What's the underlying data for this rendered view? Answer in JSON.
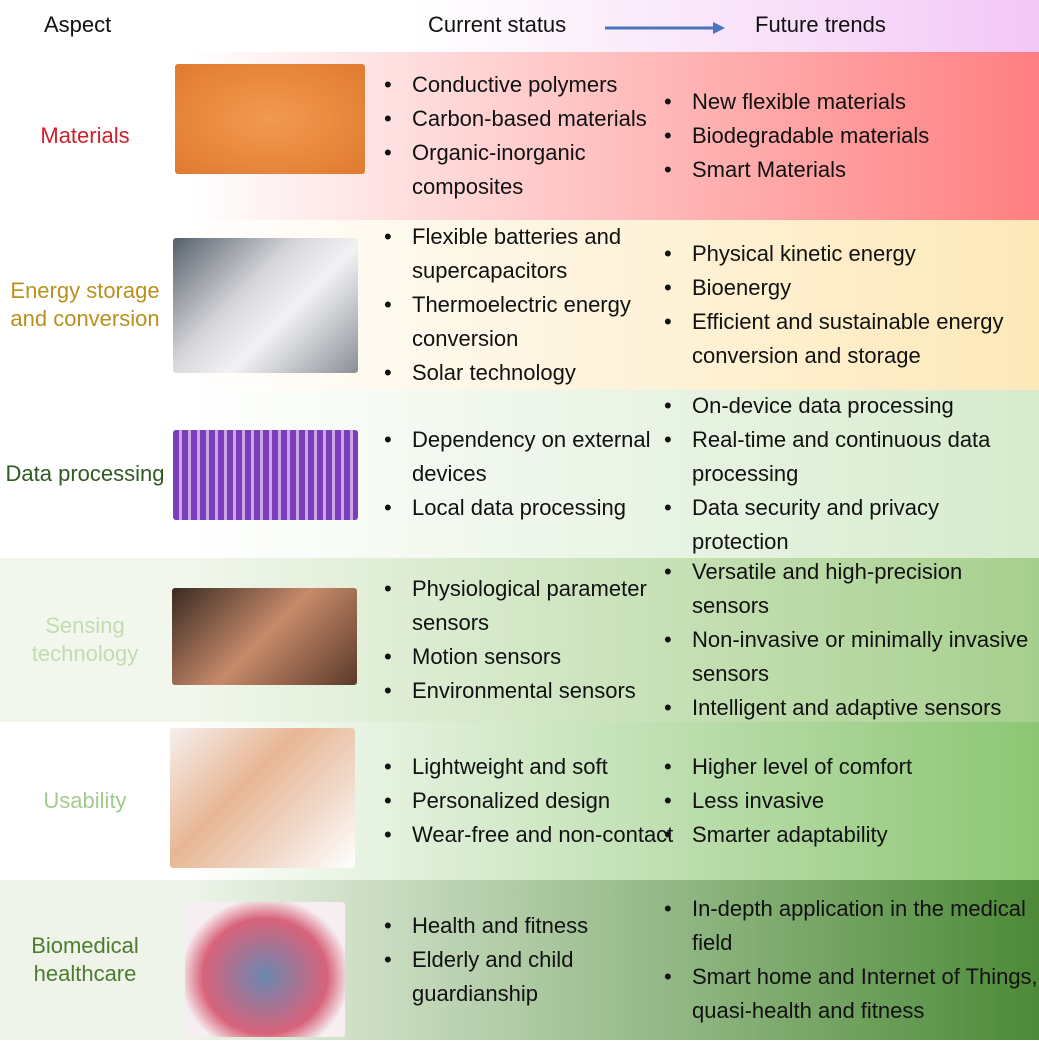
{
  "header": {
    "aspect": "Aspect",
    "current": "Current status",
    "future": "Future trends",
    "arrow_color": "#4a74c0"
  },
  "rows": [
    {
      "label": "Materials",
      "label_color": "#d01f2a",
      "bg": [
        "#ffffff",
        "#ff7f80"
      ],
      "image": "flexible-2d-materials-sheet",
      "current": [
        "Conductive polymers",
        "Carbon-based materials",
        "Organic-inorganic composites"
      ],
      "future": [
        "New flexible materials",
        "Biodegradable materials",
        "Smart Materials"
      ]
    },
    {
      "label": "Energy storage and conversion",
      "label_color": "#b8911e",
      "bg": [
        "#ffffff",
        "#fde8b8"
      ],
      "image": "flexible-battery-on-arm",
      "current": [
        "Flexible batteries and supercapacitors",
        "Thermoelectric energy conversion",
        "Solar technology"
      ],
      "future": [
        "Physical kinetic energy",
        "Bioenergy",
        "Efficient and sustainable energy conversion and storage"
      ]
    },
    {
      "label": "Data processing",
      "label_color": "#2f5a22",
      "bg": [
        "#ffffff",
        "#d6ebcd"
      ],
      "image": "electrode-array-circuit",
      "current": [
        "Dependency on external devices",
        "Local data processing"
      ],
      "future": [
        "On-device data processing",
        "Real-time and continuous data processing",
        "Data security and privacy protection"
      ]
    },
    {
      "label": "Sensing technology",
      "label_color": "#c3dcb2",
      "bg": [
        "#f1f7ec",
        "#a6cf8d"
      ],
      "image": "skin-sensor-patch",
      "current": [
        "Physiological parameter sensors",
        "Motion sensors",
        "Environmental sensors"
      ],
      "future": [
        "Versatile and high-precision sensors",
        "Non-invasive or minimally invasive sensors",
        "Intelligent and adaptive sensors"
      ]
    },
    {
      "label": "Usability",
      "label_color": "#a3c98b",
      "bg": [
        "#ffffff",
        "#8cc673"
      ],
      "image": "wireless-wearable-man",
      "current": [
        "Lightweight and soft",
        "Personalized design",
        "Wear-free and non-contact"
      ],
      "future": [
        "Higher level of comfort",
        "Less invasive",
        "Smarter adaptability"
      ]
    },
    {
      "label": "Biomedical healthcare",
      "label_color": "#4d7c31",
      "bg": [
        "#eef4ea",
        "#4d8a38"
      ],
      "image": "cardiac-jacket-heart",
      "current": [
        "Health and fitness",
        "Elderly and child guardianship"
      ],
      "future": [
        "In-depth application in the medical field",
        "Smart home and Internet of Things, quasi-health and fitness"
      ]
    }
  ]
}
